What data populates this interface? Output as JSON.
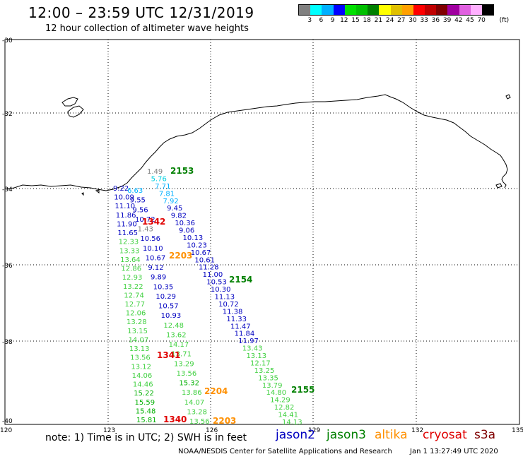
{
  "title": "12:00 – 23:59 UTC 12/31/2019",
  "subtitle": "12 hour collection of altimeter wave heights",
  "legend": {
    "unit": "(ft)",
    "colors": [
      "#808080",
      "#00ffff",
      "#00b0ff",
      "#0000ff",
      "#00e000",
      "#00c000",
      "#008000",
      "#ffff00",
      "#e0c000",
      "#ffa000",
      "#ff0000",
      "#c00000",
      "#800000",
      "#a000a0",
      "#e060e0",
      "#ffb0ff",
      "#000000"
    ],
    "labels": [
      "3",
      "6",
      "9",
      "12",
      "15",
      "18",
      "21",
      "24",
      "27",
      "30",
      "33",
      "36",
      "39",
      "42",
      "45",
      "70"
    ]
  },
  "axes": {
    "lat_labels": [
      "-30",
      "-32",
      "-34",
      "-36",
      "-38",
      "-40"
    ],
    "lon_labels": [
      "120",
      "123",
      "126",
      "129",
      "132",
      "135"
    ]
  },
  "times": [
    {
      "text": "2153",
      "color": "#008000"
    },
    {
      "text": "1342",
      "color": "#e00000"
    },
    {
      "text": "2203",
      "color": "#ff9000"
    },
    {
      "text": "2154",
      "color": "#008000"
    },
    {
      "text": "1341",
      "color": "#e00000"
    },
    {
      "text": "2204",
      "color": "#ff9000"
    },
    {
      "text": "2155",
      "color": "#008000"
    },
    {
      "text": "1340",
      "color": "#e00000"
    },
    {
      "text": "2203",
      "color": "#ff9000"
    }
  ],
  "tracks": {
    "c2": [
      "1.49",
      "5.76",
      "7.71",
      "7.81",
      "7.92",
      "9.45",
      "9.82",
      "10.36",
      "9.06",
      "10.13",
      "10.23",
      "10.67",
      "10.61",
      "11.28",
      "11.00",
      "10.53",
      "10.30",
      "11.13",
      "10.72",
      "11.38",
      "11.33",
      "11.47",
      "11.84",
      "11.97",
      "13.43",
      "13.13",
      "12.17",
      "13.25",
      "13.35",
      "13.79",
      "14.80",
      "14.29",
      "12.82",
      "14.41",
      "14.13"
    ],
    "c1": [
      "9.22",
      "10.09",
      "11.10",
      "11.86",
      "11.90",
      "11.65",
      "12.33",
      "13.33",
      "13.64",
      "12.86",
      "12.93",
      "13.22",
      "12.74",
      "12.77",
      "12.06",
      "13.28",
      "13.15",
      "14.07",
      "13.13",
      "13.56",
      "13.12",
      "14.06",
      "14.46",
      "15.22",
      "15.59",
      "15.48",
      "15.81"
    ],
    "c3": [
      "6.63",
      "9.55",
      "9.56",
      "10.72",
      "1.43",
      "10.56",
      "10.10",
      "10.67",
      "9.12",
      "9.89",
      "10.35",
      "10.29",
      "10.57",
      "10.93",
      "12.48",
      "13.62",
      "14.17",
      "13.71",
      "13.29",
      "13.56",
      "15.32",
      "13.86",
      "14.07",
      "13.28",
      "13.56"
    ]
  },
  "note": "note:  1) Time is in UTC; 2) SWH is in feet",
  "satellites": [
    {
      "name": "jason2",
      "color": "#0000c0"
    },
    {
      "name": "jason3",
      "color": "#008000"
    },
    {
      "name": "altika",
      "color": "#ff9000"
    },
    {
      "name": "cryosat",
      "color": "#e00000"
    },
    {
      "name": "s3a",
      "color": "#800000"
    }
  ],
  "footer": "NOAA/NESDIS Center for Satellite Applications and Research",
  "footer_date": "Jan  1 13:27:49 UTC 2020"
}
